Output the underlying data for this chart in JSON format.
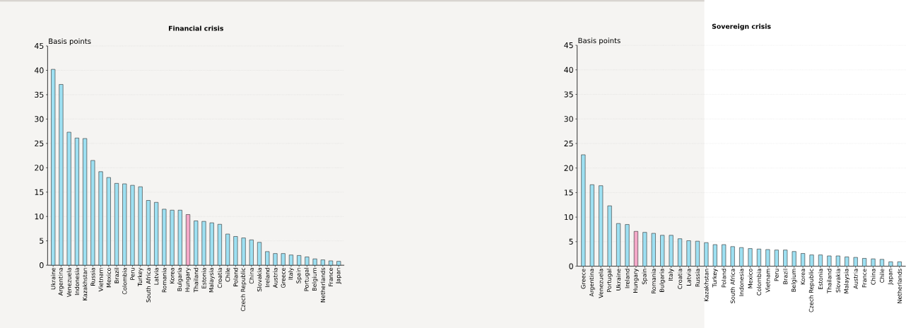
{
  "chart_data": [
    {
      "type": "bar",
      "title": "Financial crisis",
      "ylabel": "Basis points",
      "categories": [
        "Ukraine",
        "Argentina",
        "Venezuela",
        "Indonesia",
        "Kazakhstan",
        "Russia",
        "Vietnam",
        "Mexico",
        "Brazil",
        "Colombia",
        "Peru",
        "Turkey",
        "South Africa",
        "Latvia",
        "Romania",
        "Korea",
        "Bulgaria",
        "Hungary",
        "Thailand",
        "Estonia",
        "Malaysia",
        "Croatia",
        "Chile",
        "Poland",
        "Czech Republic",
        "China",
        "Slovakia",
        "Ireland",
        "Austria",
        "Greece",
        "Italy",
        "Spain",
        "Portugal",
        "Belgium",
        "Netherlands",
        "France",
        "Japan"
      ],
      "values": [
        40.2,
        37.1,
        27.3,
        26.1,
        26.0,
        21.5,
        19.2,
        18.0,
        16.8,
        16.7,
        16.4,
        16.1,
        13.3,
        12.9,
        11.5,
        11.3,
        11.3,
        10.4,
        9.1,
        9.0,
        8.7,
        8.4,
        6.4,
        5.9,
        5.6,
        5.2,
        4.7,
        2.8,
        2.4,
        2.4,
        2.1,
        2.0,
        1.7,
        1.3,
        1.1,
        0.9,
        0.8
      ],
      "colors": [
        "#9de0f2",
        "#9de0f2",
        "#9de0f2",
        "#9de0f2",
        "#9de0f2",
        "#9de0f2",
        "#9de0f2",
        "#9de0f2",
        "#9de0f2",
        "#9de0f2",
        "#9de0f2",
        "#9de0f2",
        "#9de0f2",
        "#9de0f2",
        "#9de0f2",
        "#9de0f2",
        "#9de0f2",
        "#f4a8c8",
        "#9de0f2",
        "#9de0f2",
        "#9de0f2",
        "#9de0f2",
        "#9de0f2",
        "#9de0f2",
        "#9de0f2",
        "#9de0f2",
        "#9de0f2",
        "#9de0f2",
        "#9de0f2",
        "#9de0f2",
        "#9de0f2",
        "#9de0f2",
        "#9de0f2",
        "#9de0f2",
        "#9de0f2",
        "#9de0f2",
        "#9de0f2"
      ],
      "ylim": [
        0,
        45
      ],
      "yticks": [
        0,
        5,
        10,
        15,
        20,
        25,
        30,
        35,
        40,
        45
      ],
      "grid": "y"
    },
    {
      "type": "bar",
      "title": "Sovereign crisis",
      "ylabel": "Basis points",
      "categories": [
        "Greece",
        "Argentina",
        "Venezuela",
        "Portugal",
        "Ukraine",
        "Ireland",
        "Hungary",
        "Spain",
        "Romania",
        "Bulgaria",
        "Italy",
        "Croatia",
        "Latvia",
        "Russia",
        "Kazakhstan",
        "Turkey",
        "Poland",
        "South Africa",
        "Indonesia",
        "Mexico",
        "Colombia",
        "Vietnam",
        "Peru",
        "Brazil",
        "Belgium",
        "Korea",
        "Czech Republic",
        "Estonia",
        "Thailand",
        "Slovakia",
        "Malaysia",
        "Austria",
        "France",
        "China",
        "Chile",
        "Japan",
        "Netherlands"
      ],
      "values": [
        22.7,
        16.6,
        16.4,
        12.3,
        8.7,
        8.5,
        7.1,
        6.9,
        6.7,
        6.3,
        6.3,
        5.6,
        5.2,
        5.1,
        4.8,
        4.4,
        4.4,
        4.0,
        3.8,
        3.6,
        3.5,
        3.4,
        3.3,
        3.3,
        3.0,
        2.6,
        2.3,
        2.3,
        2.1,
        2.1,
        1.9,
        1.8,
        1.6,
        1.5,
        1.4,
        0.9,
        0.9
      ],
      "colors": [
        "#9de0f2",
        "#9de0f2",
        "#9de0f2",
        "#9de0f2",
        "#9de0f2",
        "#9de0f2",
        "#f4a8c8",
        "#9de0f2",
        "#9de0f2",
        "#9de0f2",
        "#9de0f2",
        "#9de0f2",
        "#9de0f2",
        "#9de0f2",
        "#9de0f2",
        "#9de0f2",
        "#9de0f2",
        "#9de0f2",
        "#9de0f2",
        "#9de0f2",
        "#9de0f2",
        "#9de0f2",
        "#9de0f2",
        "#9de0f2",
        "#9de0f2",
        "#9de0f2",
        "#9de0f2",
        "#9de0f2",
        "#9de0f2",
        "#9de0f2",
        "#9de0f2",
        "#9de0f2",
        "#9de0f2",
        "#9de0f2",
        "#9de0f2",
        "#9de0f2",
        "#9de0f2"
      ],
      "ylim": [
        0,
        45
      ],
      "yticks": [
        0,
        5,
        10,
        15,
        20,
        25,
        30,
        35,
        40,
        45
      ],
      "grid": "y"
    }
  ]
}
